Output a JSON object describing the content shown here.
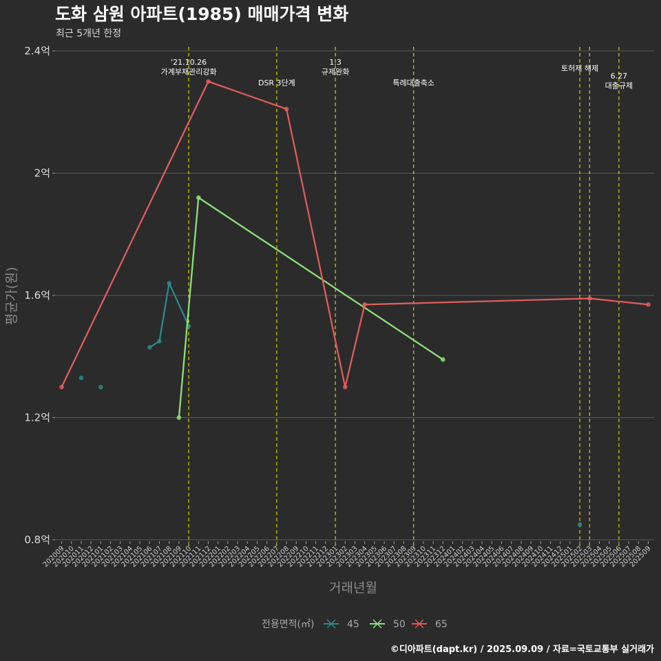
{
  "chart_data": {
    "type": "line",
    "title": "도화 삼원 아파트(1985) 매매가격 변화",
    "subtitle": "최근 5개년 한정",
    "xlabel": "거래년월",
    "ylabel": "평균가(원)",
    "ylim": [
      0.8,
      2.4
    ],
    "y_ticks": [
      {
        "value": 0.8,
        "label": "0.8억"
      },
      {
        "value": 1.2,
        "label": "1.2억"
      },
      {
        "value": 1.6,
        "label": "1.6억"
      },
      {
        "value": 2.0,
        "label": "2억"
      },
      {
        "value": 2.4,
        "label": "2.4억"
      }
    ],
    "categories": [
      "202009",
      "202010",
      "202011",
      "202012",
      "202101",
      "202102",
      "202103",
      "202104",
      "202105",
      "202106",
      "202107",
      "202108",
      "202109",
      "202110",
      "202111",
      "202112",
      "202201",
      "202202",
      "202203",
      "202204",
      "202205",
      "202206",
      "202207",
      "202208",
      "202209",
      "202210",
      "202211",
      "202212",
      "202301",
      "202302",
      "202303",
      "202304",
      "202305",
      "202306",
      "202307",
      "202308",
      "202309",
      "202310",
      "202311",
      "202312",
      "202401",
      "202402",
      "202403",
      "202404",
      "202405",
      "202406",
      "202407",
      "202408",
      "202409",
      "202410",
      "202411",
      "202412",
      "202501",
      "202502",
      "202503",
      "202504",
      "202505",
      "202506",
      "202507",
      "202508",
      "202509"
    ],
    "grid": true,
    "legend_position": "bottom",
    "legend_title": "전용면적(㎡)",
    "series": [
      {
        "name": "45",
        "color": "#2a8a8a",
        "segments": [
          [
            {
              "x": "202011",
              "y": 1.33
            }
          ],
          [
            {
              "x": "202101",
              "y": 1.3
            }
          ],
          [
            {
              "x": "202106",
              "y": 1.43
            },
            {
              "x": "202107",
              "y": 1.45
            },
            {
              "x": "202108",
              "y": 1.64
            },
            {
              "x": "202110",
              "y": 1.5
            }
          ],
          [
            {
              "x": "202502",
              "y": 0.85
            }
          ]
        ]
      },
      {
        "name": "50",
        "color": "#8ee07a",
        "segments": [
          [
            {
              "x": "202109",
              "y": 1.2
            },
            {
              "x": "202111",
              "y": 1.92
            },
            {
              "x": "202312",
              "y": 1.39
            }
          ]
        ]
      },
      {
        "name": "65",
        "color": "#e05c5c",
        "segments": [
          [
            {
              "x": "202009",
              "y": 1.3
            },
            {
              "x": "202112",
              "y": 2.3
            },
            {
              "x": "202208",
              "y": 2.21
            },
            {
              "x": "202302",
              "y": 1.3
            },
            {
              "x": "202304",
              "y": 1.57
            },
            {
              "x": "202503",
              "y": 1.59
            },
            {
              "x": "202509",
              "y": 1.57
            }
          ]
        ]
      }
    ],
    "events": [
      {
        "x": "202110",
        "label": "'21.10.26\n가계부채관리강화"
      },
      {
        "x": "202207",
        "label": "DSR 3단계"
      },
      {
        "x": "202301",
        "label": "1.3\n규제완화"
      },
      {
        "x": "202309",
        "label": "특례대출축소"
      },
      {
        "x": "202502",
        "label": "토허제 해제"
      },
      {
        "x": "202503",
        "label": ""
      },
      {
        "x": "202506",
        "label": "6.27\n대출규제"
      }
    ],
    "caption": "©디아파트(dapt.kr) / 2025.09.09 / 자료=국토교통부 실거래가"
  }
}
